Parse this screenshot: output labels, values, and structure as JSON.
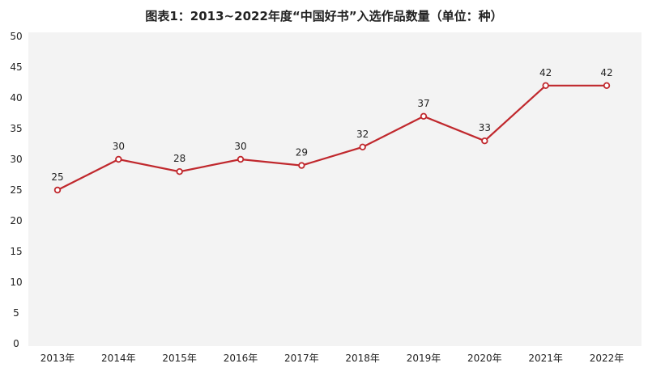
{
  "chart_data": {
    "type": "line",
    "title": "图表1：2013~2022年度“中国好书”入选作品数量（单位：种）",
    "xlabel": "",
    "ylabel": "",
    "categories": [
      "2013年",
      "2014年",
      "2015年",
      "2016年",
      "2017年",
      "2018年",
      "2019年",
      "2020年",
      "2021年",
      "2022年"
    ],
    "series": [
      {
        "name": "入选作品数量",
        "values": [
          25,
          30,
          28,
          30,
          29,
          32,
          37,
          33,
          42,
          42
        ],
        "color": "#c0282d"
      }
    ],
    "ylim": [
      0,
      50
    ],
    "yticks": [
      0,
      5,
      10,
      15,
      20,
      25,
      30,
      35,
      40,
      45,
      50
    ],
    "grid": false,
    "legend": "none",
    "plot_background": "#f3f3f3"
  }
}
